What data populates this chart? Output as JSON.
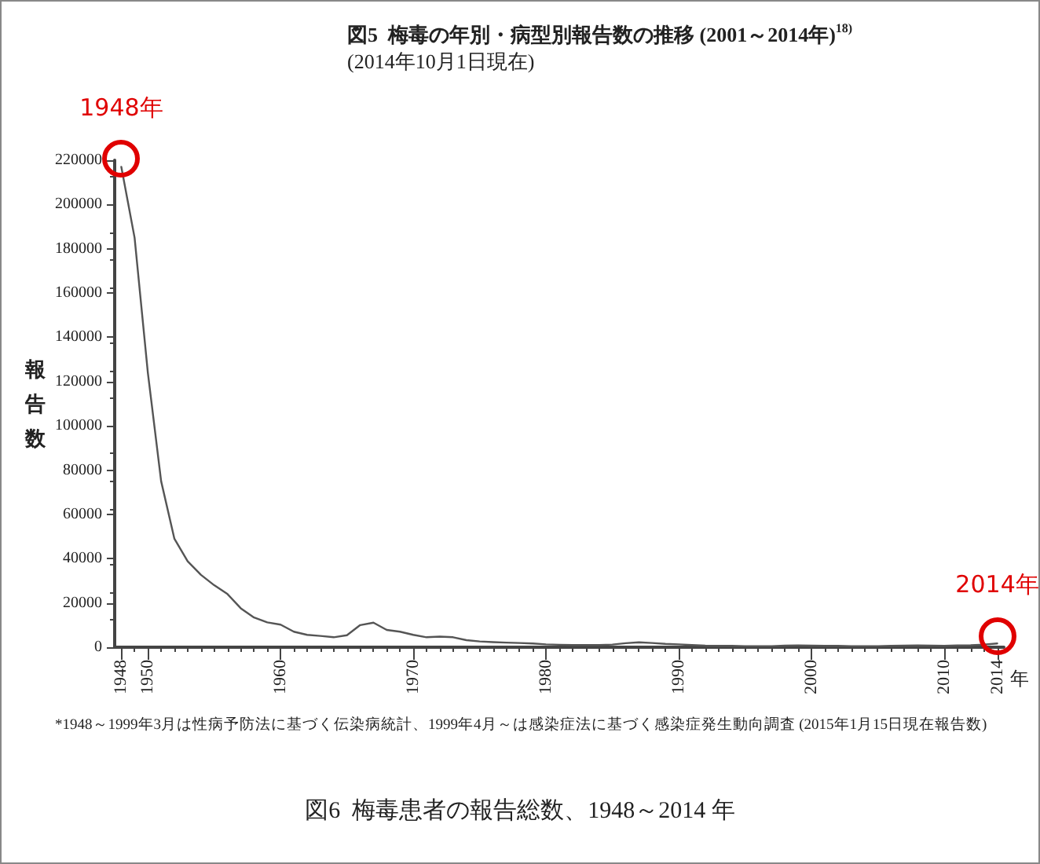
{
  "chart_data": {
    "type": "line",
    "title": "図5  梅毒の年別・病型別報告数の推移 (2001～2014年)$^{18)}$",
    "subtitle": "(2014年10月1日現在)",
    "ylabel": "報告数",
    "xlabel": "年",
    "x": [
      1948,
      1949,
      1950,
      1951,
      1952,
      1953,
      1954,
      1955,
      1956,
      1957,
      1958,
      1959,
      1960,
      1961,
      1962,
      1963,
      1964,
      1965,
      1966,
      1967,
      1968,
      1969,
      1970,
      1971,
      1972,
      1973,
      1974,
      1975,
      1976,
      1977,
      1978,
      1979,
      1980,
      1981,
      1982,
      1983,
      1984,
      1985,
      1986,
      1987,
      1988,
      1989,
      1990,
      1991,
      1992,
      1993,
      1994,
      1995,
      1996,
      1997,
      1998,
      1999,
      2000,
      2001,
      2002,
      2003,
      2004,
      2005,
      2006,
      2007,
      2008,
      2009,
      2010,
      2011,
      2012,
      2013,
      2014
    ],
    "series": [
      {
        "color": "#555555",
        "values": [
          217000,
          185000,
          124000,
          75000,
          49000,
          38800,
          32700,
          28000,
          24000,
          17600,
          13400,
          11200,
          10200,
          7000,
          5600,
          5100,
          4500,
          5400,
          10000,
          11100,
          7800,
          7000,
          5600,
          4500,
          4800,
          4500,
          3200,
          2600,
          2300,
          2100,
          1900,
          1700,
          1300,
          1100,
          1000,
          1000,
          1000,
          1200,
          1800,
          2200,
          1900,
          1500,
          1300,
          1000,
          700,
          600,
          600,
          500,
          500,
          500,
          700,
          800,
          700,
          600,
          600,
          500,
          500,
          500,
          600,
          700,
          800,
          700,
          600,
          800,
          900,
          1200,
          1700
        ]
      }
    ],
    "xlim": [
      1947.5,
      2014.5
    ],
    "xticks": [
      1948,
      1950,
      1960,
      1970,
      1980,
      1990,
      2000,
      2010,
      2014
    ],
    "ylim": [
      0,
      220000
    ],
    "yticks": [
      0,
      20000,
      40000,
      60000,
      80000,
      100000,
      120000,
      140000,
      160000,
      180000,
      200000,
      220000
    ],
    "grid": false,
    "marker": "none",
    "line_style": "solid",
    "annotations": [
      {
        "text": "1948年",
        "x": 1948,
        "y": 217000
      },
      {
        "text": "2014年",
        "x": 2014,
        "y": 1700
      },
      "*1948～1999年3月は性病予防法に基づく伝染病統計、1999年4月～は感染症法に基づく感染症発生動向調査 (2015年1月15日現在報告数)",
      "図6  梅毒患者の報告総数、1948～2014 年"
    ]
  }
}
